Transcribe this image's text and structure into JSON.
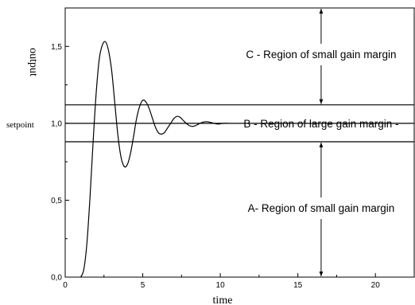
{
  "chart_data": {
    "type": "line",
    "xlabel": "time",
    "ylabel": "output",
    "xlim": [
      0,
      22.5
    ],
    "ylim": [
      0,
      1.75
    ],
    "x_ticks": [
      0,
      5,
      10,
      15,
      20
    ],
    "x_tick_labels": [
      "0",
      "5",
      "10",
      "15",
      "20"
    ],
    "y_ticks": [
      0,
      0.5,
      1.0,
      1.5
    ],
    "y_tick_labels": [
      "0,0",
      "0,5",
      "1,0",
      "1,5"
    ],
    "setpoint_label": "setpoint",
    "setpoint": 1.0,
    "band": {
      "upper": 1.12,
      "lower": 0.88
    },
    "series": [
      {
        "x": [
          1.0,
          1.2,
          1.4,
          1.6,
          1.8,
          2.0,
          2.2,
          2.4,
          2.6,
          2.8,
          3.0,
          3.2,
          3.4,
          3.6,
          3.8,
          4.0,
          4.2,
          4.4,
          4.6,
          4.8,
          5.0,
          5.2,
          5.4,
          5.6,
          5.8,
          6.0,
          6.2,
          6.4,
          6.6,
          6.8,
          7.0,
          7.2,
          7.4,
          7.6,
          7.8,
          8.0,
          8.2,
          8.4,
          8.6,
          8.8,
          9.0,
          9.2,
          9.4,
          9.6,
          9.8,
          10.0,
          10.2,
          10.5
        ],
        "y": [
          0.0,
          0.05,
          0.22,
          0.52,
          0.88,
          1.2,
          1.42,
          1.51,
          1.53,
          1.47,
          1.34,
          1.13,
          0.92,
          0.78,
          0.72,
          0.73,
          0.8,
          0.91,
          1.03,
          1.11,
          1.15,
          1.14,
          1.1,
          1.04,
          0.98,
          0.94,
          0.93,
          0.94,
          0.97,
          1.0,
          1.03,
          1.045,
          1.04,
          1.02,
          1.0,
          0.985,
          0.98,
          0.985,
          0.995,
          1.005,
          1.01,
          1.01,
          1.005,
          1.0,
          0.995,
          0.997,
          1.0,
          1.0
        ]
      }
    ],
    "annotations": [
      {
        "text": "C - Region of small gain margin",
        "x": 16.5,
        "y": 1.45,
        "arrow_from": 1.75,
        "arrow_to": 1.12
      },
      {
        "text": "B - Region of large gain margin -",
        "x": 16.5,
        "y": 1.0
      },
      {
        "text": "A- Region of small gain margin",
        "x": 16.5,
        "y": 0.45,
        "arrow_from": 0.88,
        "arrow_to": 0.0
      }
    ]
  }
}
